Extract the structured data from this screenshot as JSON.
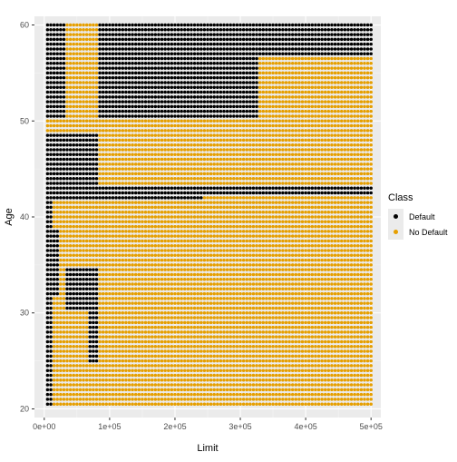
{
  "chart_data": {
    "type": "scatter",
    "title": "",
    "xlabel": "Limit",
    "ylabel": "Age",
    "xlim": [
      -15000,
      515000
    ],
    "ylim": [
      19.1,
      60.9
    ],
    "x_ticks": [
      {
        "value": 0,
        "label": "0e+00"
      },
      {
        "value": 100000,
        "label": "1e+05"
      },
      {
        "value": 200000,
        "label": "2e+05"
      },
      {
        "value": 300000,
        "label": "3e+05"
      },
      {
        "value": 400000,
        "label": "4e+05"
      },
      {
        "value": 500000,
        "label": "5e+05"
      }
    ],
    "y_ticks": [
      {
        "value": 20,
        "label": "20"
      },
      {
        "value": 30,
        "label": "30"
      },
      {
        "value": 40,
        "label": "40"
      },
      {
        "value": 50,
        "label": "50"
      },
      {
        "value": 60,
        "label": "60"
      }
    ],
    "grid": true,
    "legend_position": "right",
    "grid_x_range": [
      5000,
      500000
    ],
    "grid_x_step": 5000,
    "grid_y_range": [
      20.5,
      60
    ],
    "grid_y_step": 0.5,
    "legend": {
      "title": "Class",
      "items": [
        {
          "label": "Default",
          "color": "#000000"
        },
        {
          "label": "No Default",
          "color": "#E69F00"
        }
      ]
    },
    "default_class": "No Default",
    "default_regions": [
      {
        "x_range": [
          5000,
          30000
        ],
        "y_range": [
          50.5,
          60
        ]
      },
      {
        "x_range": [
          85000,
          325000
        ],
        "y_range": [
          50.5,
          60
        ]
      },
      {
        "x_range": [
          325000,
          500000
        ],
        "y_range": [
          57,
          60
        ]
      },
      {
        "x_range": [
          5000,
          80000
        ],
        "y_range": [
          43.5,
          48.5
        ]
      },
      {
        "x_range": [
          5000,
          500000
        ],
        "y_range": [
          42.5,
          43
        ]
      },
      {
        "x_range": [
          5000,
          240000
        ],
        "y_range": [
          42,
          42.5
        ]
      },
      {
        "x_range": [
          5000,
          10000
        ],
        "y_range": [
          20.5,
          41.5
        ]
      },
      {
        "x_range": [
          10000,
          20000
        ],
        "y_range": [
          32,
          38.5
        ]
      },
      {
        "x_range": [
          35000,
          80000
        ],
        "y_range": [
          30.5,
          34.5
        ]
      },
      {
        "x_range": [
          70000,
          80000
        ],
        "y_range": [
          25,
          30.5
        ]
      }
    ]
  }
}
